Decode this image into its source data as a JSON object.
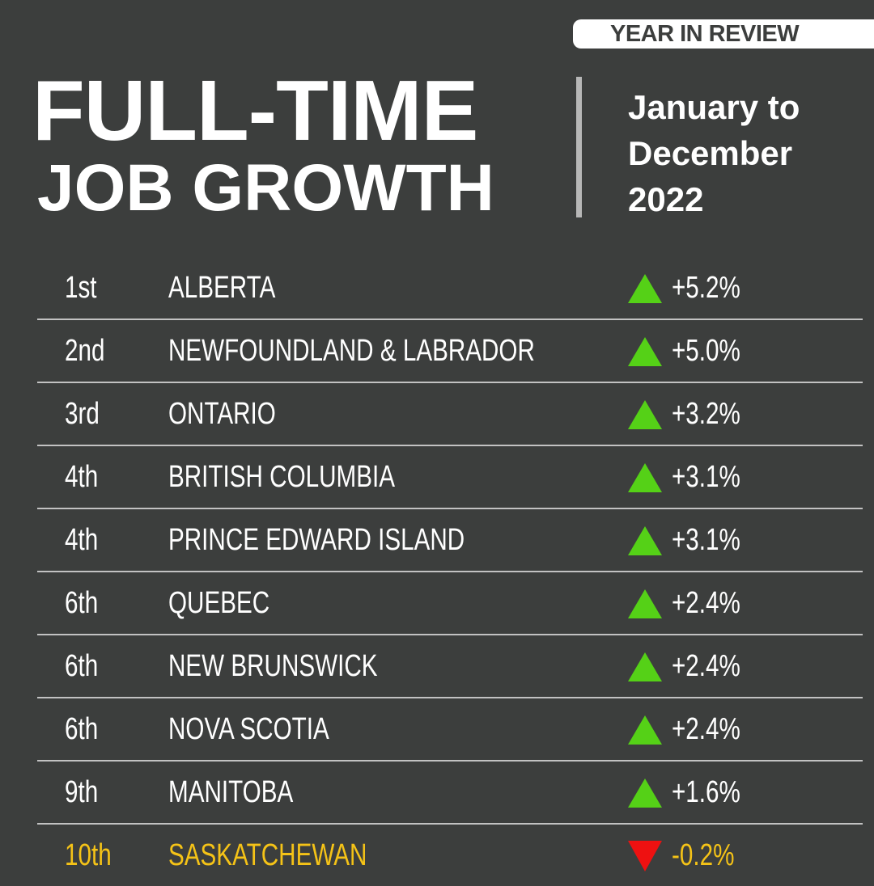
{
  "header": {
    "badge": "YEAR IN REVIEW",
    "title_line1": "FULL-TIME",
    "title_line2": "JOB GROWTH",
    "date_line1": "January to",
    "date_line2": "December",
    "date_line3": "2022"
  },
  "colors": {
    "background": "#3c3e3d",
    "up": "#55d117",
    "down": "#ee1111",
    "highlight": "#f5c317",
    "text": "#ffffff"
  },
  "chart_data": {
    "type": "table",
    "title": "FULL-TIME JOB GROWTH",
    "subtitle": "January to December 2022",
    "columns": [
      "Rank",
      "Province",
      "Direction",
      "Change"
    ],
    "rows": [
      {
        "rank": "1st",
        "province": "ALBERTA",
        "direction": "up",
        "change": "+5.2%",
        "value": 5.2
      },
      {
        "rank": "2nd",
        "province": "NEWFOUNDLAND & LABRADOR",
        "direction": "up",
        "change": "+5.0%",
        "value": 5.0
      },
      {
        "rank": "3rd",
        "province": "ONTARIO",
        "direction": "up",
        "change": "+3.2%",
        "value": 3.2
      },
      {
        "rank": "4th",
        "province": "BRITISH COLUMBIA",
        "direction": "up",
        "change": "+3.1%",
        "value": 3.1
      },
      {
        "rank": "4th",
        "province": "PRINCE EDWARD ISLAND",
        "direction": "up",
        "change": "+3.1%",
        "value": 3.1
      },
      {
        "rank": "6th",
        "province": "QUEBEC",
        "direction": "up",
        "change": "+2.4%",
        "value": 2.4
      },
      {
        "rank": "6th",
        "province": "NEW BRUNSWICK",
        "direction": "up",
        "change": "+2.4%",
        "value": 2.4
      },
      {
        "rank": "6th",
        "province": "NOVA SCOTIA",
        "direction": "up",
        "change": "+2.4%",
        "value": 2.4
      },
      {
        "rank": "9th",
        "province": "MANITOBA",
        "direction": "up",
        "change": "+1.6%",
        "value": 1.6
      },
      {
        "rank": "10th",
        "province": "SASKATCHEWAN",
        "direction": "down",
        "change": "-0.2%",
        "value": -0.2
      }
    ]
  }
}
